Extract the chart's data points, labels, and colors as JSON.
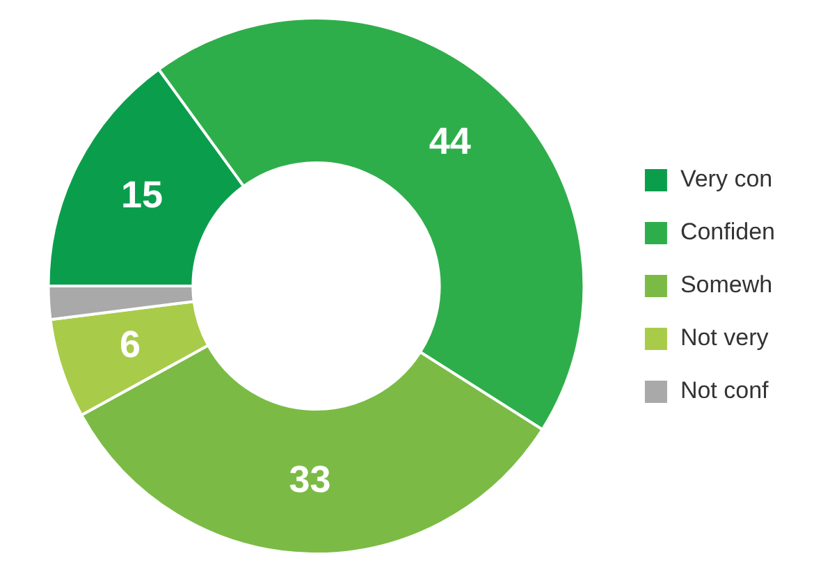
{
  "chart_data": {
    "type": "donut",
    "categories": [
      "Very con",
      "Confiden",
      "Somewh",
      "Not very",
      "Not conf"
    ],
    "values": [
      15,
      44,
      33,
      6,
      2
    ],
    "colors": [
      "#0a9e4c",
      "#2eae4a",
      "#7bbb45",
      "#a8cc4a",
      "#a9a9a9"
    ],
    "value_labels": [
      "15",
      "44",
      "33",
      "6",
      null
    ],
    "legend": "right"
  }
}
